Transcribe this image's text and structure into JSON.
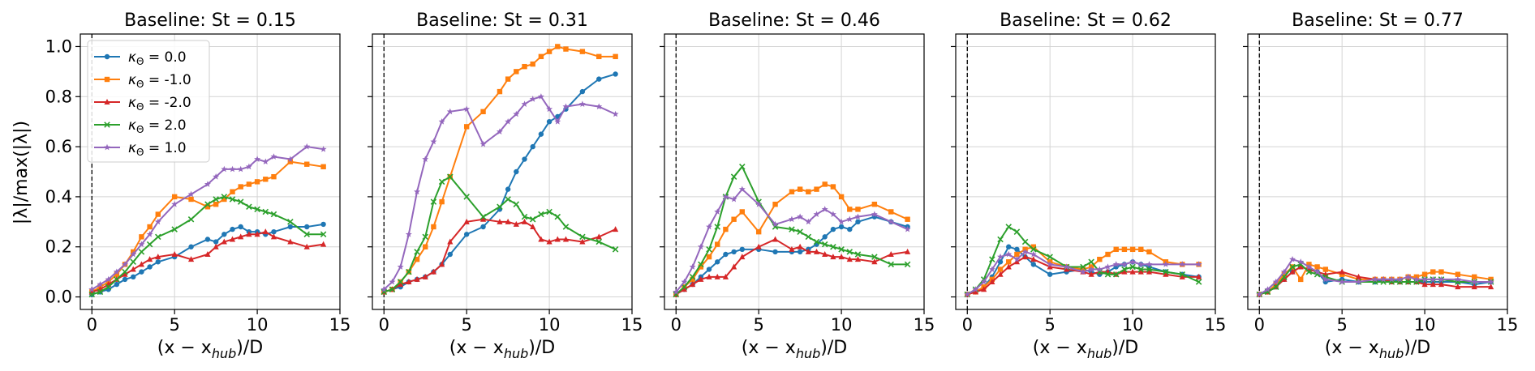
{
  "figure": {
    "ylabel": "|λ|/max(|λ|)",
    "xlabel": "(x − x",
    "xlabel_sub": "hub",
    "xlabel_tail": ")/D"
  },
  "legend": [
    {
      "label_prefix": "κ",
      "label_sub": "Θ",
      "label_value": " = 0.0",
      "color": "#1f77b4",
      "marker": "circle"
    },
    {
      "label_prefix": "κ",
      "label_sub": "Θ",
      "label_value": " = -1.0",
      "color": "#ff7f0e",
      "marker": "square"
    },
    {
      "label_prefix": "κ",
      "label_sub": "Θ",
      "label_value": " = -2.0",
      "color": "#d62728",
      "marker": "triangle"
    },
    {
      "label_prefix": "κ",
      "label_sub": "Θ",
      "label_value": " = 2.0",
      "color": "#2ca02c",
      "marker": "x"
    },
    {
      "label_prefix": "κ",
      "label_sub": "Θ",
      "label_value": " = 1.0",
      "color": "#9467bd",
      "marker": "star"
    }
  ],
  "chart_data": [
    {
      "type": "line",
      "title": "Baseline: St = 0.15",
      "xlim": [
        -0.7,
        15
      ],
      "ylim": [
        -0.05,
        1.05
      ],
      "xticks": [
        0,
        5,
        10,
        15
      ],
      "yticks": [
        0.0,
        0.2,
        0.4,
        0.6,
        0.8,
        1.0
      ],
      "xtick_labels": [
        "0",
        "5",
        "10",
        "15"
      ],
      "ytick_labels": [
        "0.0",
        "0.2",
        "0.4",
        "0.6",
        "0.8",
        "1.0"
      ],
      "vline": 0,
      "grid": true,
      "legend": "upper left",
      "x": [
        0,
        0.5,
        1,
        1.5,
        2,
        2.5,
        3,
        3.5,
        4,
        5,
        6,
        7,
        7.5,
        8,
        8.5,
        9,
        9.5,
        10,
        10.5,
        11,
        12,
        13,
        14
      ],
      "series": [
        {
          "name": "κΘ = 0.0",
          "values": [
            0.01,
            0.02,
            0.03,
            0.05,
            0.07,
            0.08,
            0.1,
            0.12,
            0.14,
            0.16,
            0.2,
            0.23,
            0.22,
            0.25,
            0.27,
            0.28,
            0.26,
            0.26,
            0.25,
            0.26,
            0.28,
            0.28,
            0.29
          ]
        },
        {
          "name": "κΘ = -1.0",
          "values": [
            0.02,
            0.04,
            0.06,
            0.09,
            0.13,
            0.18,
            0.24,
            0.28,
            0.33,
            0.4,
            0.39,
            0.36,
            0.37,
            0.39,
            0.42,
            0.44,
            0.45,
            0.46,
            0.47,
            0.48,
            0.54,
            0.53,
            0.52
          ]
        },
        {
          "name": "κΘ = -2.0",
          "values": [
            0.02,
            0.03,
            0.05,
            0.07,
            0.09,
            0.11,
            0.13,
            0.15,
            0.16,
            0.17,
            0.15,
            0.17,
            0.2,
            0.22,
            0.23,
            0.24,
            0.25,
            0.25,
            0.26,
            0.24,
            0.22,
            0.2,
            0.21
          ]
        },
        {
          "name": "κΘ = 2.0",
          "values": [
            0.01,
            0.02,
            0.04,
            0.07,
            0.1,
            0.14,
            0.18,
            0.21,
            0.24,
            0.27,
            0.31,
            0.37,
            0.39,
            0.4,
            0.39,
            0.38,
            0.36,
            0.35,
            0.34,
            0.33,
            0.3,
            0.25,
            0.25
          ]
        },
        {
          "name": "κΘ = 1.0",
          "values": [
            0.03,
            0.05,
            0.07,
            0.1,
            0.13,
            0.17,
            0.21,
            0.25,
            0.3,
            0.37,
            0.41,
            0.45,
            0.48,
            0.51,
            0.51,
            0.51,
            0.52,
            0.55,
            0.54,
            0.56,
            0.55,
            0.6,
            0.59
          ]
        }
      ]
    },
    {
      "type": "line",
      "title": "Baseline: St = 0.31",
      "xlim": [
        -0.7,
        15
      ],
      "ylim": [
        -0.05,
        1.05
      ],
      "xticks": [
        0,
        5,
        10,
        15
      ],
      "yticks": [
        0.0,
        0.2,
        0.4,
        0.6,
        0.8,
        1.0
      ],
      "xtick_labels": [
        "0",
        "5",
        "10",
        "15"
      ],
      "ytick_labels": [
        "0.0",
        "0.2",
        "0.4",
        "0.6",
        "0.8",
        "1.0"
      ],
      "vline": 0,
      "grid": true,
      "x": [
        0,
        0.5,
        1,
        1.5,
        2,
        2.5,
        3,
        3.5,
        4,
        5,
        6,
        7,
        7.5,
        8,
        8.5,
        9,
        9.5,
        10,
        10.5,
        11,
        12,
        13,
        14
      ],
      "series": [
        {
          "name": "κΘ = 0.0",
          "values": [
            0.02,
            0.03,
            0.04,
            0.06,
            0.07,
            0.08,
            0.1,
            0.13,
            0.17,
            0.25,
            0.28,
            0.35,
            0.43,
            0.5,
            0.55,
            0.6,
            0.65,
            0.7,
            0.72,
            0.75,
            0.82,
            0.87,
            0.89
          ]
        },
        {
          "name": "κΘ = -1.0",
          "values": [
            0.02,
            0.03,
            0.06,
            0.1,
            0.15,
            0.2,
            0.28,
            0.38,
            0.48,
            0.68,
            0.74,
            0.82,
            0.87,
            0.9,
            0.92,
            0.93,
            0.96,
            0.98,
            1.0,
            0.99,
            0.98,
            0.96,
            0.96
          ]
        },
        {
          "name": "κΘ = -2.0",
          "values": [
            0.02,
            0.03,
            0.05,
            0.06,
            0.07,
            0.08,
            0.1,
            0.13,
            0.22,
            0.3,
            0.31,
            0.3,
            0.3,
            0.29,
            0.3,
            0.28,
            0.23,
            0.22,
            0.23,
            0.23,
            0.22,
            0.24,
            0.27
          ]
        },
        {
          "name": "κΘ = 2.0",
          "values": [
            0.02,
            0.03,
            0.06,
            0.1,
            0.18,
            0.24,
            0.38,
            0.46,
            0.48,
            0.4,
            0.32,
            0.36,
            0.39,
            0.37,
            0.32,
            0.31,
            0.33,
            0.34,
            0.32,
            0.28,
            0.24,
            0.22,
            0.19
          ]
        },
        {
          "name": "κΘ = 1.0",
          "values": [
            0.03,
            0.06,
            0.12,
            0.25,
            0.42,
            0.55,
            0.62,
            0.7,
            0.74,
            0.75,
            0.61,
            0.66,
            0.7,
            0.73,
            0.77,
            0.79,
            0.8,
            0.75,
            0.7,
            0.76,
            0.77,
            0.76,
            0.73
          ]
        }
      ]
    },
    {
      "type": "line",
      "title": "Baseline: St = 0.46",
      "xlim": [
        -0.7,
        15
      ],
      "ylim": [
        -0.05,
        1.05
      ],
      "xticks": [
        0,
        5,
        10,
        15
      ],
      "yticks": [
        0.0,
        0.2,
        0.4,
        0.6,
        0.8,
        1.0
      ],
      "xtick_labels": [
        "0",
        "5",
        "10",
        "15"
      ],
      "ytick_labels": [
        "0.0",
        "0.2",
        "0.4",
        "0.6",
        "0.8",
        "1.0"
      ],
      "vline": 0,
      "grid": true,
      "x": [
        0,
        0.5,
        1,
        1.5,
        2,
        2.5,
        3,
        3.5,
        4,
        5,
        6,
        7,
        7.5,
        8,
        8.5,
        9,
        9.5,
        10,
        10.5,
        11,
        12,
        13,
        14
      ],
      "series": [
        {
          "name": "κΘ = 0.0",
          "values": [
            0.01,
            0.03,
            0.05,
            0.08,
            0.11,
            0.14,
            0.17,
            0.18,
            0.19,
            0.19,
            0.18,
            0.18,
            0.18,
            0.19,
            0.21,
            0.24,
            0.27,
            0.28,
            0.27,
            0.3,
            0.32,
            0.3,
            0.28
          ]
        },
        {
          "name": "κΘ = -1.0",
          "values": [
            0.01,
            0.04,
            0.07,
            0.12,
            0.16,
            0.21,
            0.27,
            0.31,
            0.34,
            0.26,
            0.37,
            0.42,
            0.43,
            0.42,
            0.43,
            0.45,
            0.44,
            0.4,
            0.35,
            0.35,
            0.37,
            0.34,
            0.31
          ]
        },
        {
          "name": "κΘ = -2.0",
          "values": [
            0.01,
            0.03,
            0.05,
            0.07,
            0.08,
            0.08,
            0.08,
            0.12,
            0.16,
            0.2,
            0.23,
            0.19,
            0.2,
            0.18,
            0.18,
            0.17,
            0.16,
            0.16,
            0.15,
            0.15,
            0.14,
            0.17,
            0.18
          ]
        },
        {
          "name": "κΘ = 2.0",
          "values": [
            0.01,
            0.04,
            0.08,
            0.13,
            0.19,
            0.28,
            0.4,
            0.48,
            0.52,
            0.38,
            0.28,
            0.27,
            0.26,
            0.24,
            0.22,
            0.21,
            0.2,
            0.19,
            0.18,
            0.17,
            0.16,
            0.13,
            0.13
          ]
        },
        {
          "name": "κΘ = 1.0",
          "values": [
            0.02,
            0.06,
            0.12,
            0.2,
            0.28,
            0.34,
            0.4,
            0.39,
            0.43,
            0.37,
            0.29,
            0.31,
            0.32,
            0.3,
            0.33,
            0.35,
            0.33,
            0.3,
            0.31,
            0.32,
            0.33,
            0.3,
            0.27
          ]
        }
      ]
    },
    {
      "type": "line",
      "title": "Baseline: St = 0.62",
      "xlim": [
        -0.7,
        15
      ],
      "ylim": [
        -0.05,
        1.05
      ],
      "xticks": [
        0,
        5,
        10,
        15
      ],
      "yticks": [
        0.0,
        0.2,
        0.4,
        0.6,
        0.8,
        1.0
      ],
      "xtick_labels": [
        "0",
        "5",
        "10",
        "15"
      ],
      "ytick_labels": [
        "0.0",
        "0.2",
        "0.4",
        "0.6",
        "0.8",
        "1.0"
      ],
      "vline": 0,
      "grid": true,
      "x": [
        0,
        0.5,
        1,
        1.5,
        2,
        2.5,
        3,
        3.5,
        4,
        5,
        6,
        7,
        7.5,
        8,
        8.5,
        9,
        9.5,
        10,
        10.5,
        11,
        12,
        13,
        14
      ],
      "series": [
        {
          "name": "κΘ = 0.0",
          "values": [
            0.01,
            0.02,
            0.04,
            0.08,
            0.14,
            0.2,
            0.19,
            0.16,
            0.13,
            0.09,
            0.1,
            0.11,
            0.1,
            0.09,
            0.1,
            0.12,
            0.13,
            0.14,
            0.13,
            0.12,
            0.1,
            0.09,
            0.08
          ]
        },
        {
          "name": "κΘ = -1.0",
          "values": [
            0.01,
            0.02,
            0.04,
            0.07,
            0.11,
            0.14,
            0.17,
            0.19,
            0.2,
            0.14,
            0.12,
            0.11,
            0.12,
            0.15,
            0.17,
            0.19,
            0.19,
            0.19,
            0.19,
            0.18,
            0.14,
            0.13,
            0.13
          ]
        },
        {
          "name": "κΘ = -2.0",
          "values": [
            0.01,
            0.02,
            0.03,
            0.06,
            0.09,
            0.12,
            0.14,
            0.16,
            0.15,
            0.12,
            0.11,
            0.1,
            0.09,
            0.1,
            0.1,
            0.09,
            0.1,
            0.1,
            0.1,
            0.1,
            0.09,
            0.08,
            0.08
          ]
        },
        {
          "name": "κΘ = 2.0",
          "values": [
            0.01,
            0.03,
            0.07,
            0.15,
            0.23,
            0.28,
            0.26,
            0.22,
            0.19,
            0.16,
            0.12,
            0.12,
            0.14,
            0.1,
            0.09,
            0.09,
            0.11,
            0.12,
            0.11,
            0.11,
            0.1,
            0.09,
            0.06
          ]
        },
        {
          "name": "κΘ = 1.0",
          "values": [
            0.01,
            0.03,
            0.06,
            0.11,
            0.16,
            0.17,
            0.15,
            0.18,
            0.17,
            0.13,
            0.12,
            0.1,
            0.11,
            0.11,
            0.12,
            0.13,
            0.13,
            0.14,
            0.13,
            0.13,
            0.13,
            0.13,
            0.13
          ]
        }
      ]
    },
    {
      "type": "line",
      "title": "Baseline: St = 0.77",
      "xlim": [
        -0.7,
        15
      ],
      "ylim": [
        -0.05,
        1.05
      ],
      "xticks": [
        0,
        5,
        10,
        15
      ],
      "yticks": [
        0.0,
        0.2,
        0.4,
        0.6,
        0.8,
        1.0
      ],
      "xtick_labels": [
        "0",
        "5",
        "10",
        "15"
      ],
      "ytick_labels": [
        "0.0",
        "0.2",
        "0.4",
        "0.6",
        "0.8",
        "1.0"
      ],
      "vline": 0,
      "grid": true,
      "x": [
        0,
        0.5,
        1,
        1.5,
        2,
        2.5,
        3,
        3.5,
        4,
        5,
        6,
        7,
        7.5,
        8,
        8.5,
        9,
        9.5,
        10,
        10.5,
        11,
        12,
        13,
        14
      ],
      "series": [
        {
          "name": "κΘ = 0.0",
          "values": [
            0.01,
            0.02,
            0.04,
            0.07,
            0.1,
            0.12,
            0.11,
            0.1,
            0.06,
            0.07,
            0.06,
            0.06,
            0.07,
            0.07,
            0.06,
            0.06,
            0.06,
            0.06,
            0.06,
            0.06,
            0.06,
            0.05,
            0.06
          ]
        },
        {
          "name": "κΘ = -1.0",
          "values": [
            0.01,
            0.02,
            0.05,
            0.09,
            0.12,
            0.07,
            0.13,
            0.12,
            0.11,
            0.09,
            0.07,
            0.07,
            0.07,
            0.07,
            0.07,
            0.08,
            0.08,
            0.09,
            0.1,
            0.1,
            0.09,
            0.08,
            0.07
          ]
        },
        {
          "name": "κΘ = -2.0",
          "values": [
            0.01,
            0.02,
            0.04,
            0.07,
            0.1,
            0.12,
            0.11,
            0.1,
            0.09,
            0.1,
            0.08,
            0.07,
            0.07,
            0.06,
            0.06,
            0.06,
            0.06,
            0.05,
            0.05,
            0.05,
            0.04,
            0.04,
            0.04
          ]
        },
        {
          "name": "κΘ = 2.0",
          "values": [
            0.01,
            0.02,
            0.04,
            0.08,
            0.12,
            0.13,
            0.1,
            0.09,
            0.08,
            0.06,
            0.06,
            0.06,
            0.06,
            0.06,
            0.06,
            0.06,
            0.06,
            0.07,
            0.07,
            0.07,
            0.06,
            0.06,
            0.06
          ]
        },
        {
          "name": "κΘ = 1.0",
          "values": [
            0.01,
            0.03,
            0.06,
            0.1,
            0.15,
            0.14,
            0.12,
            0.1,
            0.07,
            0.06,
            0.06,
            0.07,
            0.07,
            0.07,
            0.07,
            0.08,
            0.07,
            0.07,
            0.07,
            0.07,
            0.07,
            0.06,
            0.06
          ]
        }
      ]
    }
  ]
}
